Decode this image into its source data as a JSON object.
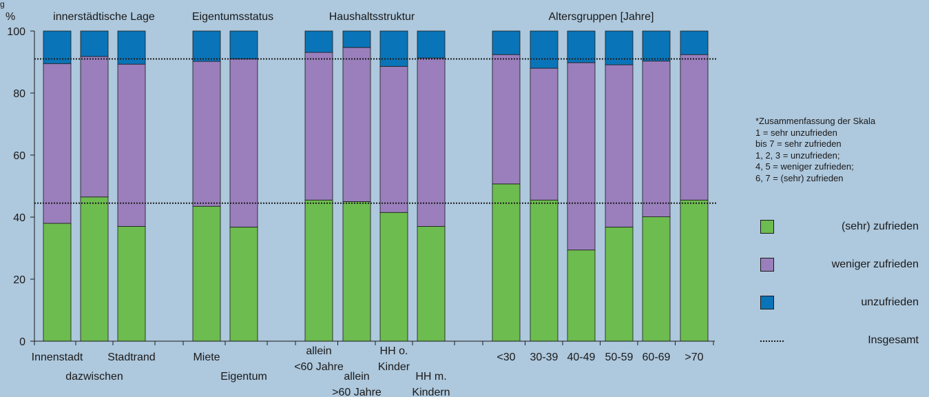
{
  "fig_label": "g",
  "y_unit": "%",
  "group_titles": [
    "innerstädtische Lage",
    "Eigentumsstatus",
    "Haushaltsstruktur",
    "Altersgruppen [Jahre]"
  ],
  "legend": {
    "note_lines": [
      "*Zusammenfassung der Skala",
      "1 = sehr unzufrieden",
      "bis 7 = sehr zufrieden",
      "1, 2, 3 = unzufrieden;",
      "4, 5 = weniger zufrieden;",
      "6, 7 = (sehr) zufrieden"
    ],
    "items": [
      {
        "label": "(sehr) zufrieden",
        "color": "#6dbc4f"
      },
      {
        "label": "weniger zufrieden",
        "color": "#9a7fbc"
      },
      {
        "label": "unzufrieden",
        "color": "#0a74b8"
      },
      {
        "label": "Insgesamt",
        "line": "dotted"
      }
    ]
  },
  "chart_data": {
    "type": "bar",
    "stacked": true,
    "ylim": [
      0,
      100
    ],
    "yticks": [
      0,
      20,
      40,
      60,
      80,
      100
    ],
    "colors": {
      "zufrieden": "#6dbc4f",
      "weniger": "#9a7fbc",
      "unzufrieden": "#0a74b8"
    },
    "groups": [
      {
        "title": "innerstädtische Lage",
        "bars": [
          0,
          1,
          2
        ]
      },
      {
        "title": "Eigentumsstatus",
        "bars": [
          3,
          4
        ]
      },
      {
        "title": "Haushaltsstruktur",
        "bars": [
          5,
          6,
          7,
          8
        ]
      },
      {
        "title": "Altersgruppen [Jahre]",
        "bars": [
          9,
          10,
          11,
          12,
          13,
          14
        ]
      }
    ],
    "categories": [
      {
        "label": [
          "Innenstadt"
        ],
        "row": 0
      },
      {
        "label": [
          "dazwischen"
        ],
        "row": 1
      },
      {
        "label": [
          "Stadtrand"
        ],
        "row": 0
      },
      {
        "label": [
          "Miete"
        ],
        "row": 0
      },
      {
        "label": [
          "Eigentum"
        ],
        "row": 1
      },
      {
        "label": [
          "allein",
          "<60 Jahre"
        ],
        "row": 0
      },
      {
        "label": [
          "allein",
          ">60 Jahre"
        ],
        "row": 1
      },
      {
        "label": [
          "HH o.",
          "Kinder"
        ],
        "row": 0
      },
      {
        "label": [
          "HH m.",
          "Kindern"
        ],
        "row": 1
      },
      {
        "label": [
          "<30"
        ],
        "row": 0
      },
      {
        "label": [
          "30-39"
        ],
        "row": 0
      },
      {
        "label": [
          "40-49"
        ],
        "row": 0
      },
      {
        "label": [
          "50-59"
        ],
        "row": 0
      },
      {
        "label": [
          "60-69"
        ],
        "row": 0
      },
      {
        "label": [
          ">70"
        ],
        "row": 0
      }
    ],
    "series": [
      {
        "name": "(sehr) zufrieden",
        "key": "zufrieden",
        "values": [
          38.0,
          46.5,
          37.0,
          43.5,
          36.8,
          45.5,
          45.0,
          41.5,
          37.0,
          50.7,
          45.5,
          29.4,
          36.8,
          40.1,
          45.5
        ]
      },
      {
        "name": "weniger zufrieden",
        "key": "weniger",
        "values": [
          51.5,
          45.3,
          52.3,
          46.7,
          54.2,
          47.6,
          49.7,
          47.1,
          54.3,
          41.7,
          42.5,
          60.4,
          52.3,
          50.2,
          46.9
        ]
      },
      {
        "name": "unzufrieden",
        "key": "unzufrieden",
        "values": [
          10.5,
          8.2,
          10.7,
          9.8,
          9.0,
          6.9,
          5.3,
          11.4,
          8.7,
          7.6,
          12.0,
          10.2,
          10.9,
          9.7,
          7.6
        ]
      }
    ],
    "reference_lines": [
      {
        "name": "Insgesamt",
        "values": [
          91,
          44.5
        ]
      }
    ],
    "bar_value_labels": [
      "Insgesamt"
    ]
  }
}
